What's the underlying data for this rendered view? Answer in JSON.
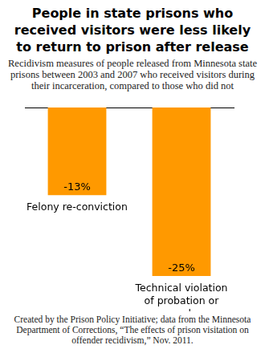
{
  "chart_data": {
    "type": "bar",
    "title": "People in state prisons who received visitors were less likely to return to prison after release",
    "subtitle": "Recidivism measures of people released from Minnesota state prisons between 2003 and 2007 who received visitors during their incarceration, compared to those who did not",
    "source": "Created by the Prison Policy Initiative; data from the Minnesota Department of Corrections, “The effects of prison visitation on offender recidivism,” Nov. 2011.",
    "categories": [
      "Felony re-conviction",
      "Technical violation of probation or parole"
    ],
    "values": [
      -13,
      -25
    ],
    "value_labels": [
      "-13%",
      "-25%"
    ],
    "data_labels": true,
    "color": "#ff9900",
    "ylim": [
      -25,
      0
    ],
    "grid": false,
    "tick_labels": false
  }
}
